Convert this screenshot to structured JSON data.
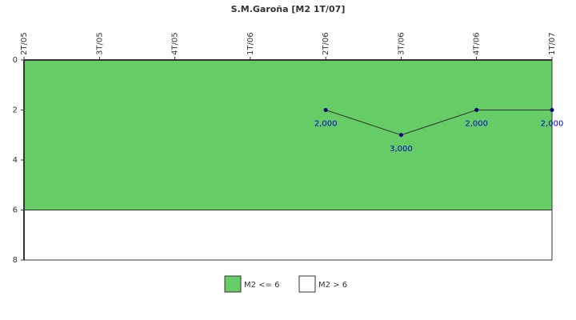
{
  "chart_data": {
    "type": "line",
    "title": "S.M.Garoña [M2 1T/07]",
    "categories": [
      "2T/05",
      "3T/05",
      "4T/05",
      "1T/06",
      "2T/06",
      "3T/06",
      "4T/06",
      "1T/07"
    ],
    "series": [
      {
        "name": "M2",
        "color": "#333333",
        "marker_color": "#000080",
        "label_color": "#0000cc",
        "values": [
          null,
          null,
          null,
          null,
          2,
          3,
          2,
          2
        ],
        "value_labels": [
          null,
          null,
          null,
          null,
          "2,000",
          "3,000",
          "2,000",
          "2,000"
        ]
      }
    ],
    "bands": [
      {
        "name": "M2 <= 6",
        "color": "#66cc66",
        "from": 0,
        "to": 6
      },
      {
        "name": "M2 > 6",
        "color": "#ffffff",
        "from": 6,
        "to": 8
      }
    ],
    "ylim": [
      0,
      8
    ],
    "yticks": [
      0,
      2,
      4,
      6,
      8
    ],
    "y_reversed": true,
    "legend": "bottom"
  }
}
